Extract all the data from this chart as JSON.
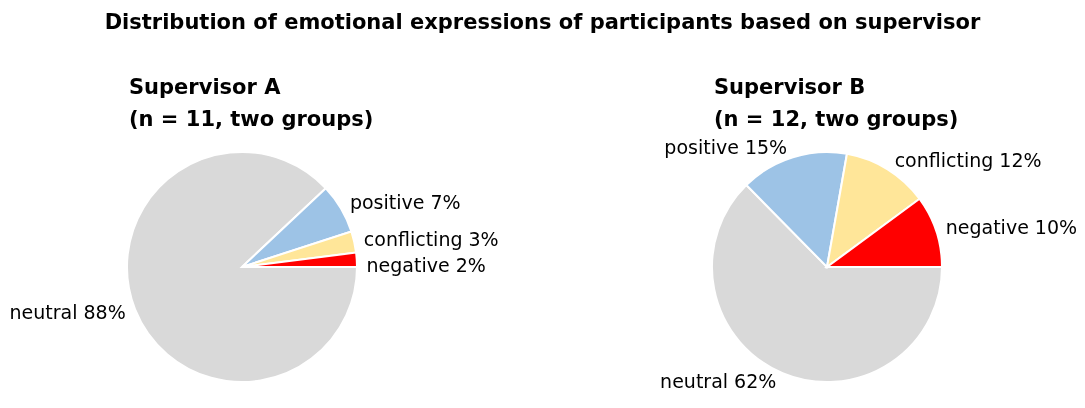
{
  "chart_data": [
    {
      "type": "pie",
      "title": "Supervisor A",
      "subtitle": "(n = 11, two groups)",
      "categories": [
        "neutral",
        "positive",
        "conflicting",
        "negative"
      ],
      "values": [
        88,
        7,
        3,
        2
      ],
      "value_labels": [
        "88%",
        "7%",
        "3%",
        "2%"
      ],
      "colors": [
        "#d9d9d9",
        "#9dc3e6",
        "#ffe699",
        "#ff0000"
      ],
      "annotations": [
        "Distribution of emotional expressions of participants based on supervisor"
      ]
    },
    {
      "type": "pie",
      "title": "Supervisor B",
      "subtitle": "(n = 12, two groups)",
      "categories": [
        "neutral",
        "positive",
        "conflicting",
        "negative"
      ],
      "values": [
        62,
        15,
        12,
        10
      ],
      "value_labels": [
        "62%",
        "15%",
        "12%",
        "10%"
      ],
      "colors": [
        "#d9d9d9",
        "#9dc3e6",
        "#ffe699",
        "#ff0000"
      ]
    }
  ]
}
